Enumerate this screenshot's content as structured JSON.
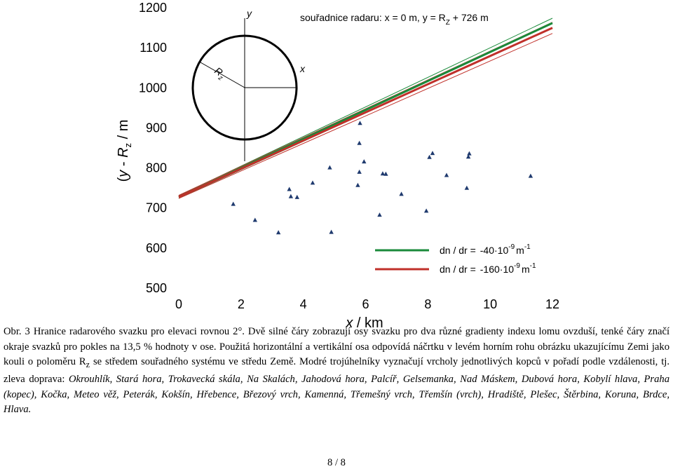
{
  "chart_data": {
    "type": "line",
    "xlabel": "x / km",
    "ylabel": "(y - R_z) / m",
    "xlim": [
      0,
      12
    ],
    "ylim": [
      500,
      1200
    ],
    "x_ticks": [
      "0",
      "2",
      "4",
      "6",
      "8",
      "10",
      "12"
    ],
    "y_ticks": [
      "500",
      "600",
      "700",
      "800",
      "900",
      "1000",
      "1100",
      "1200"
    ],
    "grid": false,
    "header": "souřadnice radaru: x = 0 m, y = R_Z + 726 m",
    "inset": {
      "axis_y": "y",
      "axis_x": "x",
      "radius_label": "R_z"
    },
    "series": [
      {
        "name": "dn / dr = -40·10^-9 m^-1",
        "color": "#1a8a3a",
        "style": "thick",
        "x": [
          0,
          12
        ],
        "y": [
          726,
          1160
        ]
      },
      {
        "color": "#1a8a3a",
        "style": "thin",
        "x": [
          0,
          12
        ],
        "y": [
          729,
          1172
        ]
      },
      {
        "color": "#1a8a3a",
        "style": "thin",
        "x": [
          0,
          12
        ],
        "y": [
          723,
          1148
        ]
      },
      {
        "name": "dn / dr = -160·10^-9 m^-1",
        "color": "#c0302a",
        "style": "thick",
        "x": [
          0,
          12
        ],
        "y": [
          726,
          1148
        ]
      },
      {
        "color": "#c0302a",
        "style": "thin",
        "x": [
          0,
          12
        ],
        "y": [
          730,
          1162
        ]
      },
      {
        "color": "#c0302a",
        "style": "thin",
        "x": [
          0,
          12
        ],
        "y": [
          722,
          1134
        ]
      }
    ],
    "peaks": {
      "marker": "triangle",
      "color": "#1f3a6e",
      "points": [
        [
          1.75,
          708
        ],
        [
          2.45,
          668
        ],
        [
          3.2,
          637
        ],
        [
          3.55,
          745
        ],
        [
          3.6,
          727
        ],
        [
          3.8,
          725
        ],
        [
          4.3,
          761
        ],
        [
          4.85,
          799
        ],
        [
          4.9,
          638
        ],
        [
          5.75,
          755
        ],
        [
          5.8,
          788
        ],
        [
          5.8,
          860
        ],
        [
          5.82,
          910
        ],
        [
          5.95,
          814
        ],
        [
          6.45,
          681
        ],
        [
          6.55,
          784
        ],
        [
          6.65,
          783
        ],
        [
          7.15,
          733
        ],
        [
          7.95,
          691
        ],
        [
          8.05,
          825
        ],
        [
          8.15,
          835
        ],
        [
          8.6,
          780
        ],
        [
          9.25,
          748
        ],
        [
          9.3,
          826
        ],
        [
          9.33,
          834
        ],
        [
          11.3,
          778
        ]
      ]
    },
    "legend": {
      "position": "bottom-right",
      "entries": [
        {
          "label": "dn / dr =",
          "value": "-40·10",
          "exponent": "-9",
          "unit": "m",
          "unit_exp": "-1",
          "color": "#1a8a3a"
        },
        {
          "label": "dn / dr =",
          "value": "-160·10",
          "exponent": "-9",
          "unit": "m",
          "unit_exp": "-1",
          "color": "#c0302a"
        }
      ]
    }
  },
  "caption": {
    "label": "Obr. 3",
    "text_1": "Hranice radarového svazku pro elevaci rovnou 2°. Dvě silné čáry zobrazují osy svazku pro dva různé gradienty indexu lomu ovzduší, tenké čáry značí okraje svazků pro pokles na 13,5 % hodnoty v ose. Použitá horizontální a vertikální osa odpovídá náčrtku v levém horním rohu obrázku ukazujícímu Zemi jako kouli o poloměru R",
    "sub_z": "z",
    "text_2": " se středem souřadného systému ve středu Země. Modré trojúhelníky vyznačují vrcholy jednotlivých kopců v pořadí podle vzdálenosti, tj. zleva doprava: ",
    "hills": "Okrouhlík, Stará hora, Trokavecká skála, Na Skalách, Jahodová hora, Palcíř, Gelsemanka, Nad Máskem, Dubová hora, Kobylí hlava, Praha (kopec), Kočka, Meteo věž, Peterák, Kokšín, Hřebence, Březový vrch, Kamenná, Třemešný vrch, Třemšín (vrch), Hradiště, Plešec, Štěrbina, Koruna, Brdce, Hlava."
  },
  "page": {
    "number": "8 / 8"
  }
}
